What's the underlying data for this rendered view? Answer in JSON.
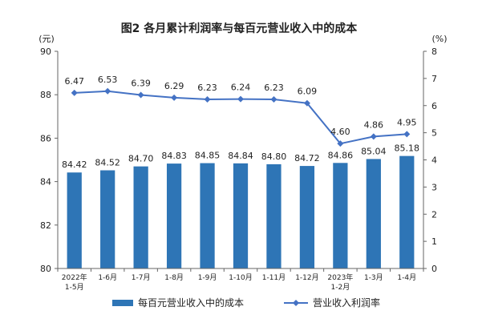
{
  "chart_data": {
    "type": "bar+line",
    "title": "图2  各月累计利润率与每百元营业收入中的成本",
    "left_unit": "(元)",
    "right_unit": "(%)",
    "categories": [
      [
        "2022年",
        "1-5月"
      ],
      [
        "1-6月"
      ],
      [
        "1-7月"
      ],
      [
        "1-8月"
      ],
      [
        "1-9月"
      ],
      [
        "1-10月"
      ],
      [
        "1-11月"
      ],
      [
        "1-12月"
      ],
      [
        "2023年",
        "1-2月"
      ],
      [
        "1-3月"
      ],
      [
        "1-4月"
      ]
    ],
    "series": [
      {
        "name": "每百元营业收入中的成本",
        "type": "bar",
        "axis": "left",
        "color": "#2e75b6",
        "values": [
          84.42,
          84.52,
          84.7,
          84.83,
          84.85,
          84.84,
          84.8,
          84.72,
          84.86,
          85.04,
          85.18
        ],
        "labels": [
          "84.42",
          "84.52",
          "84.70",
          "84.83",
          "84.85",
          "84.84",
          "84.80",
          "84.72",
          "84.86",
          "85.04",
          "85.18"
        ]
      },
      {
        "name": "营业收入利润率",
        "type": "line",
        "axis": "right",
        "color": "#4472c4",
        "values": [
          6.47,
          6.53,
          6.39,
          6.29,
          6.23,
          6.24,
          6.23,
          6.09,
          4.6,
          4.86,
          4.95
        ],
        "labels": [
          "6.47",
          "6.53",
          "6.39",
          "6.29",
          "6.23",
          "6.24",
          "6.23",
          "6.09",
          "4.60",
          "4.86",
          "4.95"
        ]
      }
    ],
    "left_axis": {
      "min": 80,
      "max": 90,
      "ticks": [
        80,
        82,
        84,
        86,
        88,
        90
      ]
    },
    "right_axis": {
      "min": 0,
      "max": 8,
      "ticks": [
        0,
        1,
        2,
        3,
        4,
        5,
        6,
        7,
        8
      ]
    },
    "grid": false,
    "legend_position": "bottom"
  }
}
